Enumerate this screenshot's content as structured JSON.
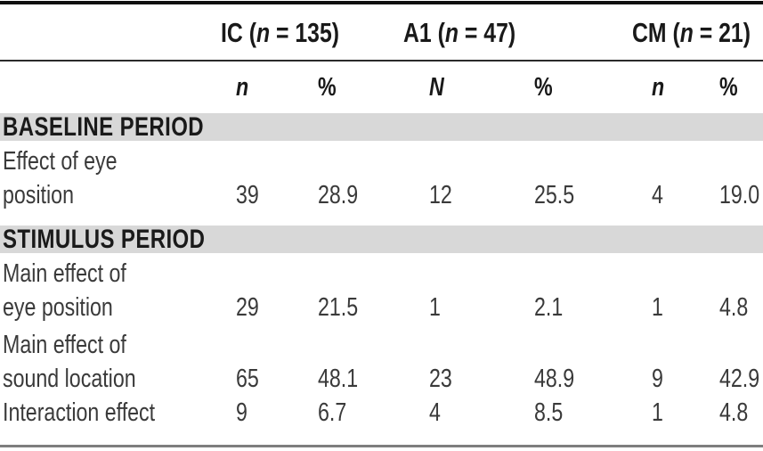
{
  "header": {
    "groups": [
      {
        "prefix": "IC (",
        "var": "n",
        "suffix": " = 135)"
      },
      {
        "prefix": "A1 (",
        "var": "n",
        "suffix": " = 47)"
      },
      {
        "prefix": "CM (",
        "var": "n",
        "suffix": " = 21)"
      }
    ],
    "columns": [
      "n",
      "%",
      "N",
      "%",
      "n",
      "%"
    ]
  },
  "sections": [
    {
      "title": "BASELINE PERIOD",
      "rows": [
        {
          "label_lines": [
            "Effect of eye",
            "position"
          ],
          "values": [
            "39",
            "28.9",
            "12",
            "25.5",
            "4",
            "19.0"
          ]
        }
      ]
    },
    {
      "title": "STIMULUS PERIOD",
      "rows": [
        {
          "label_lines": [
            "Main effect of",
            "eye position"
          ],
          "values": [
            "29",
            "21.5",
            "1",
            "2.1",
            "1",
            "4.8"
          ]
        },
        {
          "label_lines": [
            "Main effect of",
            "sound location"
          ],
          "values": [
            "65",
            "48.1",
            "23",
            "48.9",
            "9",
            "42.9"
          ]
        },
        {
          "label_lines": [
            "Interaction effect"
          ],
          "values": [
            "9",
            "6.7",
            "4",
            "8.5",
            "1",
            "4.8"
          ]
        }
      ]
    }
  ],
  "colors": {
    "band": "#d8d8d8",
    "heading_text": "#191919",
    "body_text": "#3a3a3a",
    "rule_top": "#0f0f0f",
    "rule_mid": "#2b2b2b",
    "rule_bottom": "#7e7e7e"
  }
}
